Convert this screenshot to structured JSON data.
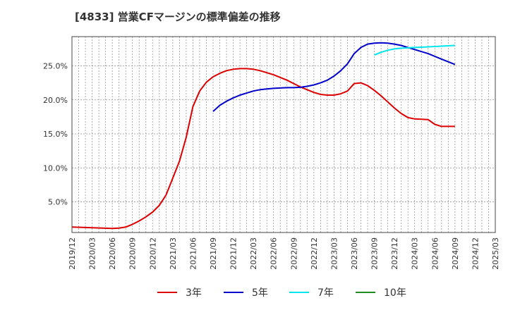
{
  "chart_data": {
    "type": "line",
    "title": "[4833]  営業CFマージンの標準偏差の推移",
    "xlabel": "",
    "ylabel": "",
    "x_tick_labels": [
      "2019/12",
      "2020/03",
      "2020/06",
      "2020/09",
      "2020/12",
      "2021/03",
      "2021/06",
      "2021/09",
      "2021/12",
      "2022/03",
      "2022/06",
      "2022/09",
      "2022/12",
      "2023/03",
      "2023/06",
      "2023/09",
      "2023/12",
      "2024/03",
      "2024/06",
      "2024/09",
      "2024/12",
      "2025/03"
    ],
    "y_ticks": [
      5,
      10,
      15,
      20,
      25
    ],
    "y_tick_labels": [
      "5.0%",
      "10.0%",
      "15.0%",
      "20.0%",
      "25.0%"
    ],
    "ylim": [
      0.5,
      29.3
    ],
    "grid": true,
    "legend_position": "bottom",
    "series": [
      {
        "name": "3年",
        "color": "#dd0000",
        "points": [
          [
            "2019/12",
            1.3
          ],
          [
            "2020/03",
            1.2
          ],
          [
            "2020/06",
            1.1
          ],
          [
            "2020/07",
            1.15
          ],
          [
            "2020/08",
            1.3
          ],
          [
            "2020/09",
            1.7
          ],
          [
            "2020/10",
            2.2
          ],
          [
            "2020/11",
            2.8
          ],
          [
            "2020/12",
            3.5
          ],
          [
            "2021/01",
            4.5
          ],
          [
            "2021/02",
            6.0
          ],
          [
            "2021/03",
            8.5
          ],
          [
            "2021/04",
            11.0
          ],
          [
            "2021/05",
            14.5
          ],
          [
            "2021/06",
            19.0
          ],
          [
            "2021/07",
            21.3
          ],
          [
            "2021/08",
            22.6
          ],
          [
            "2021/09",
            23.4
          ],
          [
            "2021/10",
            23.9
          ],
          [
            "2021/11",
            24.3
          ],
          [
            "2021/12",
            24.5
          ],
          [
            "2022/01",
            24.6
          ],
          [
            "2022/02",
            24.6
          ],
          [
            "2022/03",
            24.5
          ],
          [
            "2022/04",
            24.3
          ],
          [
            "2022/05",
            24.0
          ],
          [
            "2022/06",
            23.7
          ],
          [
            "2022/07",
            23.3
          ],
          [
            "2022/08",
            22.9
          ],
          [
            "2022/09",
            22.4
          ],
          [
            "2022/10",
            21.9
          ],
          [
            "2022/11",
            21.5
          ],
          [
            "2022/12",
            21.1
          ],
          [
            "2023/01",
            20.8
          ],
          [
            "2023/02",
            20.7
          ],
          [
            "2023/03",
            20.7
          ],
          [
            "2023/04",
            20.9
          ],
          [
            "2023/05",
            21.3
          ],
          [
            "2023/06",
            22.4
          ],
          [
            "2023/07",
            22.5
          ],
          [
            "2023/08",
            22.1
          ],
          [
            "2023/09",
            21.4
          ],
          [
            "2023/10",
            20.6
          ],
          [
            "2023/11",
            19.7
          ],
          [
            "2023/12",
            18.8
          ],
          [
            "2024/01",
            18.0
          ],
          [
            "2024/02",
            17.4
          ],
          [
            "2024/03",
            17.2
          ],
          [
            "2024/04",
            17.15
          ],
          [
            "2024/05",
            17.1
          ],
          [
            "2024/06",
            16.4
          ],
          [
            "2024/07",
            16.1
          ],
          [
            "2024/08",
            16.1
          ],
          [
            "2024/09",
            16.1
          ]
        ]
      },
      {
        "name": "5年",
        "color": "#0000cc",
        "points": [
          [
            "2021/09",
            18.3
          ],
          [
            "2021/10",
            19.2
          ],
          [
            "2021/11",
            19.8
          ],
          [
            "2021/12",
            20.3
          ],
          [
            "2022/01",
            20.7
          ],
          [
            "2022/02",
            21.0
          ],
          [
            "2022/03",
            21.3
          ],
          [
            "2022/04",
            21.5
          ],
          [
            "2022/05",
            21.6
          ],
          [
            "2022/06",
            21.7
          ],
          [
            "2022/07",
            21.75
          ],
          [
            "2022/08",
            21.8
          ],
          [
            "2022/09",
            21.8
          ],
          [
            "2022/10",
            21.85
          ],
          [
            "2022/11",
            22.0
          ],
          [
            "2022/12",
            22.2
          ],
          [
            "2023/01",
            22.5
          ],
          [
            "2023/02",
            22.9
          ],
          [
            "2023/03",
            23.5
          ],
          [
            "2023/04",
            24.3
          ],
          [
            "2023/05",
            25.3
          ],
          [
            "2023/06",
            26.8
          ],
          [
            "2023/07",
            27.7
          ],
          [
            "2023/08",
            28.2
          ],
          [
            "2023/09",
            28.35
          ],
          [
            "2023/10",
            28.4
          ],
          [
            "2023/11",
            28.35
          ],
          [
            "2023/12",
            28.2
          ],
          [
            "2024/01",
            28.0
          ],
          [
            "2024/02",
            27.7
          ],
          [
            "2024/03",
            27.4
          ],
          [
            "2024/04",
            27.1
          ],
          [
            "2024/05",
            26.8
          ],
          [
            "2024/06",
            26.4
          ],
          [
            "2024/07",
            26.0
          ],
          [
            "2024/08",
            25.6
          ],
          [
            "2024/09",
            25.2
          ]
        ]
      },
      {
        "name": "7年",
        "color": "#00e5ee",
        "points": [
          [
            "2023/09",
            26.6
          ],
          [
            "2023/10",
            27.0
          ],
          [
            "2023/11",
            27.3
          ],
          [
            "2023/12",
            27.5
          ],
          [
            "2024/01",
            27.6
          ],
          [
            "2024/02",
            27.65
          ],
          [
            "2024/03",
            27.7
          ],
          [
            "2024/04",
            27.75
          ],
          [
            "2024/05",
            27.8
          ],
          [
            "2024/06",
            27.85
          ],
          [
            "2024/07",
            27.9
          ],
          [
            "2024/08",
            27.95
          ],
          [
            "2024/09",
            28.0
          ]
        ]
      },
      {
        "name": "10年",
        "color": "#228b22",
        "points": []
      }
    ]
  }
}
